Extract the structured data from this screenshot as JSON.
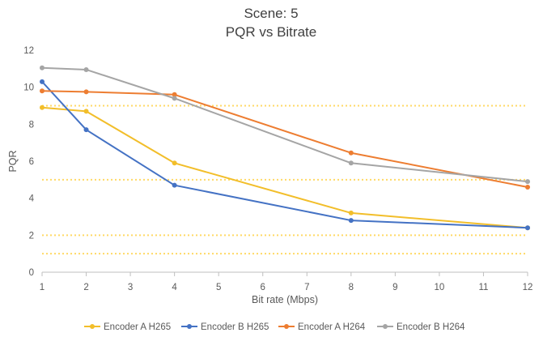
{
  "chart_data": {
    "type": "line",
    "title": "Scene: 5",
    "subtitle": "PQR vs Bitrate",
    "xlabel": "Bit rate (Mbps)",
    "ylabel": "PQR",
    "x_ticks": [
      "1",
      "2",
      "3",
      "4",
      "5",
      "6",
      "7",
      "8",
      "9",
      "10",
      "11",
      "12"
    ],
    "y_ticks": [
      "0",
      "2",
      "4",
      "6",
      "8",
      "10",
      "12"
    ],
    "xlim": [
      1,
      12
    ],
    "ylim": [
      0,
      12
    ],
    "grid": false,
    "legend_position": "bottom",
    "reference_lines": {
      "color": "#FFD966",
      "style": "dotted",
      "y": [
        1,
        2,
        5,
        9
      ]
    },
    "series": [
      {
        "name": "Encoder A H265",
        "color": "#F2BE2A",
        "x": [
          1,
          2,
          4,
          8,
          12
        ],
        "values": [
          8.9,
          8.7,
          5.9,
          3.2,
          2.4
        ]
      },
      {
        "name": "Encoder B H265",
        "color": "#4472C4",
        "x": [
          1,
          2,
          4,
          8,
          12
        ],
        "values": [
          10.3,
          7.7,
          4.7,
          2.8,
          2.4
        ]
      },
      {
        "name": "Encoder A H264",
        "color": "#ED7D31",
        "x": [
          1,
          2,
          4,
          8,
          12
        ],
        "values": [
          9.8,
          9.75,
          9.6,
          6.45,
          4.6
        ]
      },
      {
        "name": "Encoder B H264",
        "color": "#A5A5A5",
        "x": [
          1,
          2,
          4,
          8,
          12
        ],
        "values": [
          11.05,
          10.95,
          9.4,
          5.9,
          4.9
        ]
      }
    ]
  }
}
